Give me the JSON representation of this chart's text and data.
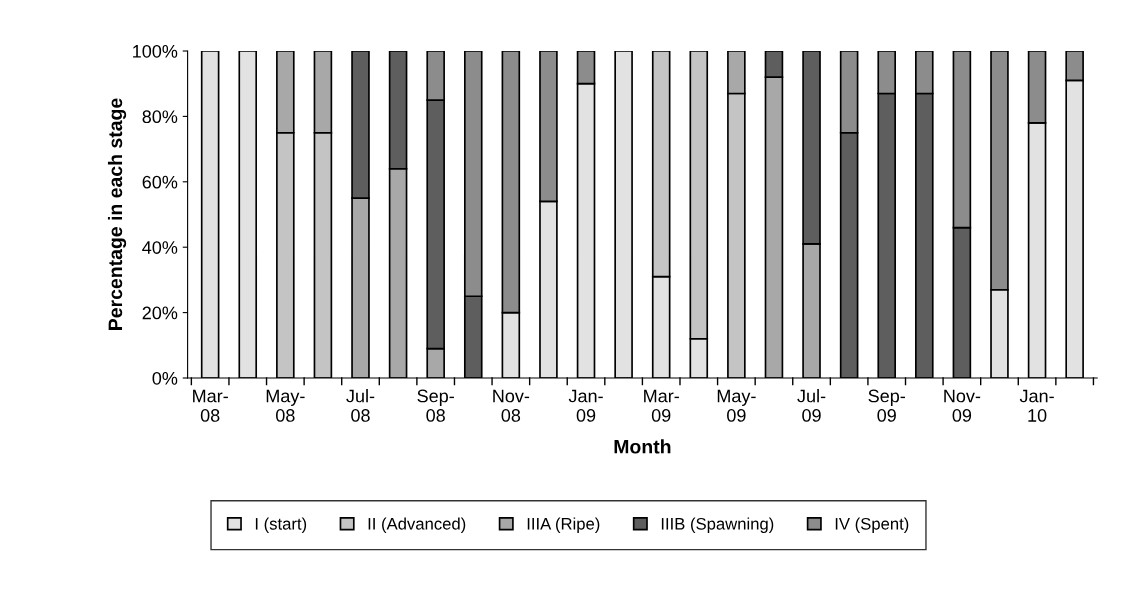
{
  "chart_data": {
    "type": "bar",
    "stacked": true,
    "xlabel": "Month",
    "ylabel": "Percentage in each stage",
    "categories": [
      "Mar-\n08",
      null,
      "May-\n08",
      null,
      "Jul-\n08",
      null,
      "Sep-\n08",
      null,
      "Nov-\n08",
      null,
      "Jan-\n09",
      null,
      "Mar-\n09",
      null,
      "May-\n09",
      null,
      "Jul-\n09",
      null,
      "Sep-\n09",
      null,
      "Nov-\n09",
      null,
      "Jan-\n10",
      null
    ],
    "series": [
      {
        "name": "I (start)",
        "color": "#e2e2e2",
        "values": [
          100,
          100,
          null,
          null,
          null,
          null,
          null,
          null,
          20,
          54,
          90,
          100,
          31,
          12,
          null,
          null,
          null,
          null,
          null,
          null,
          null,
          27,
          78,
          91
        ]
      },
      {
        "name": "II (Advanced)",
        "color": "#c4c4c4",
        "values": [
          null,
          null,
          75,
          75,
          null,
          null,
          null,
          null,
          null,
          null,
          null,
          null,
          69,
          88,
          87,
          null,
          null,
          null,
          null,
          null,
          null,
          null,
          null,
          null
        ]
      },
      {
        "name": "IIIA (Ripe)",
        "color": "#a8a8a8",
        "values": [
          null,
          null,
          25,
          25,
          55,
          64,
          9,
          null,
          null,
          null,
          null,
          null,
          null,
          null,
          13,
          92,
          41,
          null,
          null,
          null,
          null,
          null,
          null,
          null
        ]
      },
      {
        "name": "IIIB (Spawning)",
        "color": "#5e5e5e",
        "values": [
          null,
          null,
          null,
          null,
          45,
          36,
          76,
          25,
          null,
          null,
          null,
          null,
          null,
          null,
          null,
          8,
          59,
          75,
          87,
          87,
          46,
          null,
          null,
          null
        ]
      },
      {
        "name": "IV (Spent)",
        "color": "#8c8c8c",
        "values": [
          null,
          null,
          null,
          null,
          null,
          null,
          15,
          75,
          80,
          46,
          10,
          null,
          null,
          null,
          null,
          null,
          null,
          25,
          13,
          13,
          54,
          73,
          22,
          9
        ]
      }
    ],
    "ylim": [
      0,
      100
    ],
    "yticks": [
      {
        "value": 0,
        "label": "0%"
      },
      {
        "value": 20,
        "label": "20%"
      },
      {
        "value": 40,
        "label": "40%"
      },
      {
        "value": 60,
        "label": "60%"
      },
      {
        "value": 80,
        "label": "80%"
      },
      {
        "value": 100,
        "label": "100%"
      }
    ],
    "grid": false,
    "legend": "bottom"
  }
}
